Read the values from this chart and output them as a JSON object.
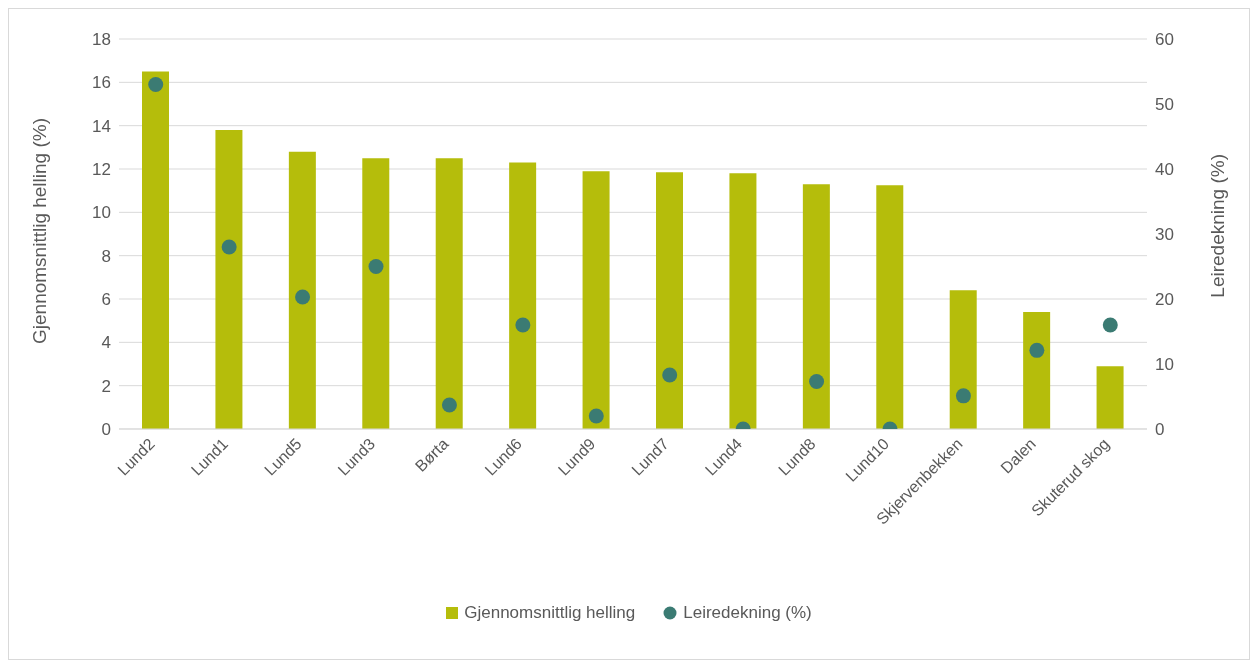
{
  "chart_data": {
    "type": "bar",
    "categories": [
      "Lund2",
      "Lund1",
      "Lund5",
      "Lund3",
      "Børta",
      "Lund6",
      "Lund9",
      "Lund7",
      "Lund4",
      "Lund8",
      "Lund10",
      "Skjervenbekken",
      "Dalen",
      "Skuterud skog"
    ],
    "series": [
      {
        "name": "Gjennomsnittlig helling",
        "color": "#b5bd0b",
        "values": [
          16.5,
          13.8,
          12.8,
          12.5,
          12.5,
          12.3,
          11.9,
          11.85,
          11.8,
          11.3,
          11.25,
          6.4,
          5.4,
          2.9
        ]
      },
      {
        "name": "Leiredekning (%)",
        "type": "scatter",
        "axis": "y2",
        "color": "#3b7b73",
        "marker": "circle",
        "values": [
          53,
          28,
          20.3,
          25,
          3.7,
          16,
          2,
          8.3,
          0,
          7.3,
          0,
          5.1,
          12.1,
          16
        ]
      }
    ],
    "ylabel": "Gjennomsnittlig helling (%)",
    "y2label": "Leiredekning (%)",
    "ylim": [
      0,
      18
    ],
    "yticks": [
      0,
      2,
      4,
      6,
      8,
      10,
      12,
      14,
      16,
      18
    ],
    "y2lim": [
      0,
      60
    ],
    "y2ticks": [
      0,
      10,
      20,
      30,
      40,
      50,
      60
    ],
    "grid": "y",
    "legend": "bottom"
  }
}
